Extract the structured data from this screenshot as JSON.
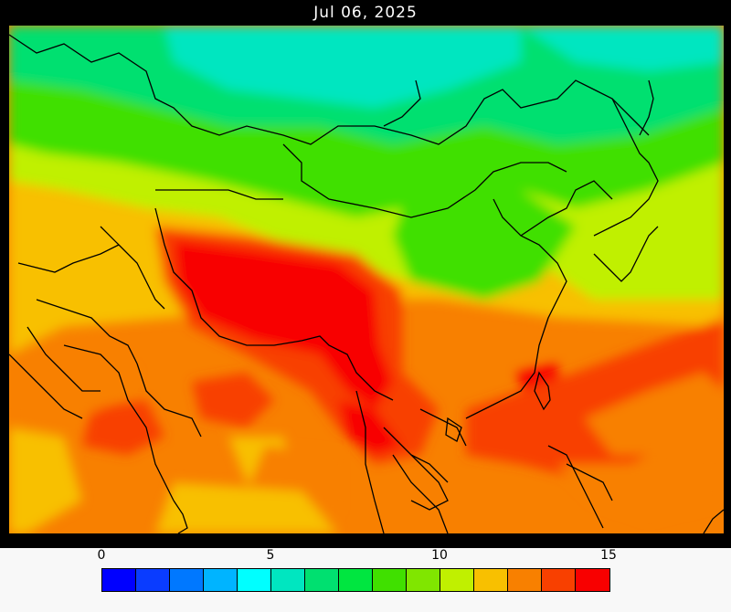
{
  "title": "Jul 06, 2025",
  "legend": {
    "tick_labels": [
      "0",
      "5",
      "10",
      "15"
    ],
    "tick_values": [
      0,
      5,
      10,
      15
    ],
    "range": [
      0,
      15
    ],
    "colors": [
      "#0000ff",
      "#0a3cff",
      "#0078ff",
      "#00b4ff",
      "#00ffff",
      "#00e6c0",
      "#00e070",
      "#00e640",
      "#40e000",
      "#80e600",
      "#c0f000",
      "#f8c000",
      "#f88000",
      "#f84000",
      "#f80000"
    ]
  },
  "map": {
    "region": "East and South Asia",
    "colors": {
      "ocean_background": "#f88000",
      "cool_north": "#00e6c0",
      "mid": "#40e000",
      "warm": "#c0f000",
      "hot": "#f84000",
      "hottest": "#f80000",
      "yellow": "#f8c000",
      "boundaries": "#000000"
    }
  }
}
